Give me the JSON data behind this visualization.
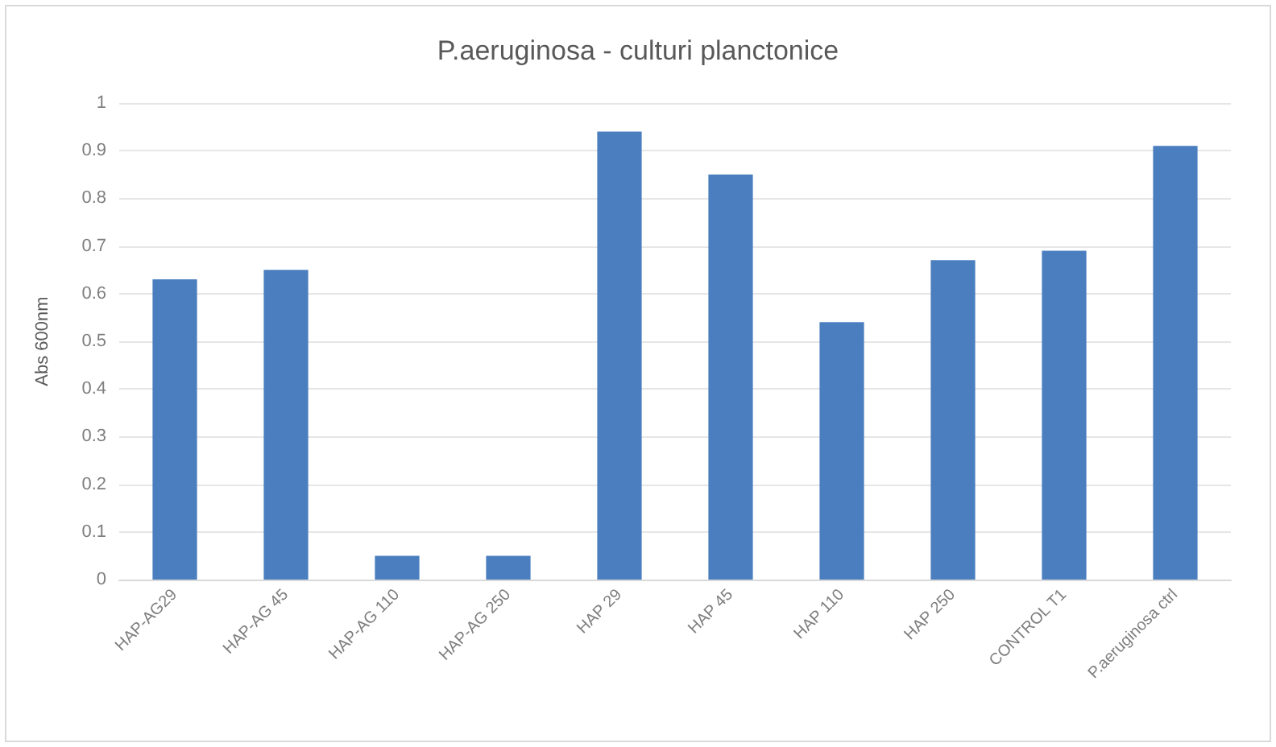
{
  "chart_data": {
    "type": "bar",
    "title": "P.aeruginosa - culturi planctonice",
    "ylabel": "Abs 600nm",
    "categories": [
      "HAP-AG29",
      "HAP-AG 45",
      "HAP-AG 110",
      "HAP-AG 250",
      "HAP 29",
      "HAP 45",
      "HAP 110",
      "HAP 250",
      "CONTROL T1",
      "P.aeruginosa ctrl"
    ],
    "values": [
      0.63,
      0.65,
      0.05,
      0.05,
      0.94,
      0.85,
      0.54,
      0.67,
      0.69,
      0.91
    ],
    "color": "#4a7ebf",
    "ylim": [
      0,
      1
    ],
    "yticks": [
      0,
      0.1,
      0.2,
      0.3,
      0.4,
      0.5,
      0.6,
      0.7,
      0.8,
      0.9,
      1
    ],
    "grid": "y"
  }
}
